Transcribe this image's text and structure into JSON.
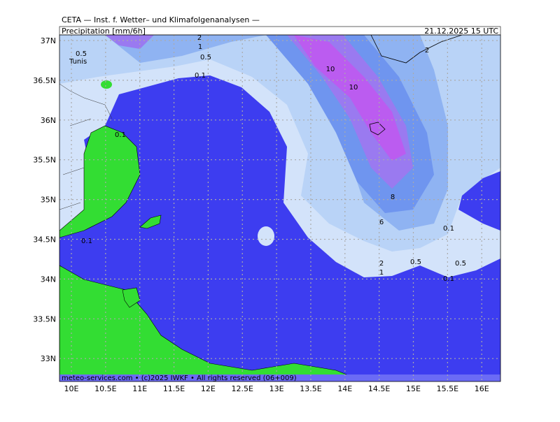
{
  "header": {
    "source": "CETA — Inst. f. Wetter– und Klimafolgenanalysen —",
    "title": "Precipitation [mm/6h]",
    "date": "21.12.2025 15 UTC"
  },
  "axes": {
    "lat": [
      "37N",
      "36.5N",
      "36N",
      "35.5N",
      "35N",
      "34.5N",
      "34N",
      "33.5N",
      "33N"
    ],
    "lon": [
      "10E",
      "10.5E",
      "11E",
      "11.5E",
      "12E",
      "12.5E",
      "13E",
      "13.5E",
      "14E",
      "14.5E",
      "15E",
      "15.5E",
      "16E"
    ]
  },
  "place": "Tunis",
  "contour_labels": [
    "2",
    "1",
    "0.5",
    "0.1",
    "0.5",
    "10",
    "10",
    "0.1",
    "8",
    "6",
    "0.1",
    "2",
    "1",
    "0.5",
    "0.5",
    "0.1",
    "0.1",
    "2"
  ],
  "footer": "meteo-services.com • (c)2025 IWKF • All rights reserved (06+009)"
}
